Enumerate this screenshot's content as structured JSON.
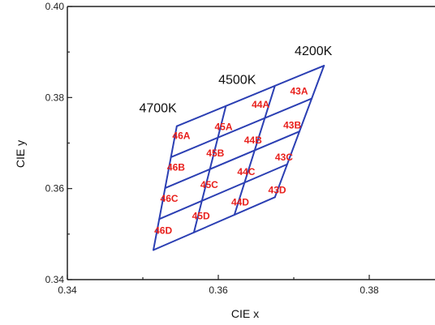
{
  "chart_data": {
    "type": "scatter",
    "title": "",
    "xlabel": "CIE x",
    "ylabel": "CIE y",
    "xlim": [
      0.34,
      0.39
    ],
    "ylim": [
      0.34,
      0.4
    ],
    "xticks": [
      {
        "value": 0.34,
        "label": "0.34"
      },
      {
        "value": 0.36,
        "label": "0.36"
      },
      {
        "value": 0.38,
        "label": "0.38"
      }
    ],
    "yticks": [
      {
        "value": 0.34,
        "label": "0.34"
      },
      {
        "value": 0.36,
        "label": "0.36"
      },
      {
        "value": 0.38,
        "label": "0.38"
      },
      {
        "value": 0.4,
        "label": "0.40"
      }
    ],
    "grid": false,
    "line_color": "#2b3fb3",
    "label_color": "#e8201c",
    "quad_grid": {
      "bottom_left": [
        0.3514,
        0.3465
      ],
      "top_left": [
        0.3545,
        0.3737
      ],
      "bottom_right": [
        0.3675,
        0.3581
      ],
      "top_right": [
        0.374,
        0.387
      ],
      "columns": 3,
      "rows": 4
    },
    "cct_labels": [
      {
        "text": "4700K",
        "x": 0.352,
        "y": 0.3768
      },
      {
        "text": "4500K",
        "x": 0.3625,
        "y": 0.383
      },
      {
        "text": "4200K",
        "x": 0.3726,
        "y": 0.3893
      }
    ],
    "regions": [
      {
        "label": "46A",
        "x": 0.3551,
        "y": 0.3716
      },
      {
        "label": "45A",
        "x": 0.3607,
        "y": 0.3736
      },
      {
        "label": "44A",
        "x": 0.3656,
        "y": 0.3785
      },
      {
        "label": "43A",
        "x": 0.3707,
        "y": 0.3814
      },
      {
        "label": "46B",
        "x": 0.3544,
        "y": 0.3647
      },
      {
        "label": "45B",
        "x": 0.3596,
        "y": 0.3678
      },
      {
        "label": "44B",
        "x": 0.3646,
        "y": 0.3706
      },
      {
        "label": "43B",
        "x": 0.3698,
        "y": 0.3739
      },
      {
        "label": "46C",
        "x": 0.3535,
        "y": 0.3578
      },
      {
        "label": "45C",
        "x": 0.3588,
        "y": 0.3608
      },
      {
        "label": "44C",
        "x": 0.3637,
        "y": 0.3637
      },
      {
        "label": "43C",
        "x": 0.3687,
        "y": 0.3669
      },
      {
        "label": "46D",
        "x": 0.3527,
        "y": 0.3508
      },
      {
        "label": "45D",
        "x": 0.3577,
        "y": 0.354
      },
      {
        "label": "44D",
        "x": 0.3629,
        "y": 0.357
      },
      {
        "label": "43D",
        "x": 0.3678,
        "y": 0.3597
      }
    ]
  }
}
